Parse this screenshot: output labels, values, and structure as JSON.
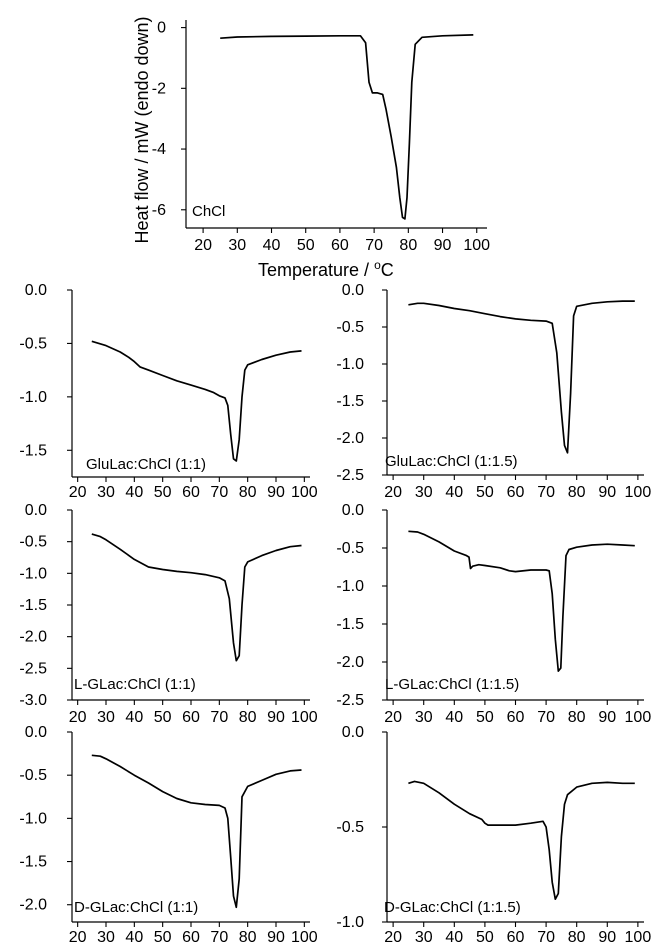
{
  "figure": {
    "ylabel": "Heat flow / mW (endo down)",
    "xlabel_prefix": "Temperature / ",
    "xlabel_sup": "o",
    "xlabel_suffix": "C"
  },
  "chart_data": [
    {
      "type": "line",
      "label": "ChCl",
      "xticks": [
        20,
        30,
        40,
        50,
        60,
        70,
        80,
        90,
        100
      ],
      "xlim": [
        15,
        103
      ],
      "yticks": [
        0,
        -2,
        -4,
        -6
      ],
      "ytick_labels": [
        "0",
        "-2",
        "-4",
        "-6"
      ],
      "ylim": [
        -6.6,
        0.25
      ],
      "x": [
        25,
        30,
        40,
        50,
        60,
        66,
        67.5,
        68.5,
        69.5,
        71,
        72.5,
        73.5,
        75,
        76.5,
        77.5,
        78.3,
        79,
        79.6,
        80.3,
        81,
        82,
        84,
        90,
        99
      ],
      "y": [
        -0.35,
        -0.31,
        -0.29,
        -0.28,
        -0.27,
        -0.27,
        -0.5,
        -1.8,
        -2.15,
        -2.15,
        -2.2,
        -2.7,
        -3.6,
        -4.6,
        -5.6,
        -6.25,
        -6.3,
        -5.6,
        -3.8,
        -1.8,
        -0.55,
        -0.32,
        -0.27,
        -0.24
      ]
    },
    {
      "type": "line",
      "label": "GluLac:ChCl (1:1)",
      "xticks": [
        20,
        30,
        40,
        50,
        60,
        70,
        80,
        90,
        100
      ],
      "xlim": [
        18,
        102
      ],
      "yticks": [
        0.0,
        -0.5,
        -1.0,
        -1.5
      ],
      "ytick_labels": [
        "0.0",
        "-0.5",
        "-1.0",
        "-1.5"
      ],
      "ylim": [
        -1.75,
        0.0
      ],
      "x": [
        25,
        30,
        35,
        38,
        40,
        42,
        45,
        50,
        55,
        60,
        65,
        68,
        70,
        72,
        73,
        74,
        75,
        76,
        77,
        78,
        79,
        80,
        85,
        90,
        95,
        99
      ],
      "y": [
        -0.48,
        -0.52,
        -0.58,
        -0.63,
        -0.67,
        -0.72,
        -0.75,
        -0.8,
        -0.85,
        -0.89,
        -0.93,
        -0.96,
        -0.99,
        -1.01,
        -1.08,
        -1.35,
        -1.58,
        -1.6,
        -1.4,
        -1.0,
        -0.75,
        -0.7,
        -0.65,
        -0.61,
        -0.58,
        -0.57
      ]
    },
    {
      "type": "line",
      "label": "GluLac:ChCl (1:1.5)",
      "xticks": [
        20,
        30,
        40,
        50,
        60,
        70,
        80,
        90,
        100
      ],
      "xlim": [
        18,
        102
      ],
      "yticks": [
        0.0,
        -0.5,
        -1.0,
        -1.5,
        -2.0,
        -2.5
      ],
      "ytick_labels": [
        "0.0",
        "-0.5",
        "-1.0",
        "-1.5",
        "-2.0",
        "-2.5"
      ],
      "ylim": [
        -2.5,
        0.0
      ],
      "x": [
        25,
        28,
        30,
        35,
        40,
        45,
        50,
        55,
        60,
        65,
        70,
        72,
        73.5,
        75,
        76,
        77,
        78,
        79,
        80,
        85,
        90,
        95,
        99
      ],
      "y": [
        -0.2,
        -0.18,
        -0.18,
        -0.21,
        -0.25,
        -0.28,
        -0.32,
        -0.36,
        -0.39,
        -0.41,
        -0.42,
        -0.45,
        -0.85,
        -1.65,
        -2.1,
        -2.2,
        -1.4,
        -0.35,
        -0.22,
        -0.18,
        -0.16,
        -0.15,
        -0.15
      ]
    },
    {
      "type": "line",
      "label": "L-GLac:ChCl (1:1)",
      "xticks": [
        20,
        30,
        40,
        50,
        60,
        70,
        80,
        90,
        100
      ],
      "xlim": [
        18,
        102
      ],
      "yticks": [
        0.0,
        -0.5,
        -1.0,
        -1.5,
        -2.0,
        -2.5,
        -3.0
      ],
      "ytick_labels": [
        "0.0",
        "-0.5",
        "-1.0",
        "-1.5",
        "-2.0",
        "-2.5",
        "-3.0"
      ],
      "ylim": [
        -3.0,
        0.0
      ],
      "x": [
        25,
        28,
        30,
        35,
        40,
        45,
        50,
        55,
        60,
        65,
        70,
        72,
        73.5,
        75,
        76,
        77,
        78,
        79,
        80,
        85,
        90,
        95,
        99
      ],
      "y": [
        -0.38,
        -0.42,
        -0.47,
        -0.62,
        -0.78,
        -0.9,
        -0.94,
        -0.97,
        -0.99,
        -1.02,
        -1.07,
        -1.12,
        -1.4,
        -2.1,
        -2.38,
        -2.3,
        -1.5,
        -0.9,
        -0.82,
        -0.72,
        -0.64,
        -0.58,
        -0.56
      ]
    },
    {
      "type": "line",
      "label": "L-GLac:ChCl (1:1.5)",
      "xticks": [
        20,
        30,
        40,
        50,
        60,
        70,
        80,
        90,
        100
      ],
      "xlim": [
        18,
        102
      ],
      "yticks": [
        0.0,
        -0.5,
        -1.0,
        -1.5,
        -2.0,
        -2.5
      ],
      "ytick_labels": [
        "0.0",
        "-0.5",
        "-1.0",
        "-1.5",
        "-2.0",
        "-2.5"
      ],
      "ylim": [
        -2.5,
        0.0
      ],
      "x": [
        25,
        28,
        30,
        35,
        40,
        44,
        44.8,
        45.3,
        46,
        48,
        50,
        55,
        58,
        60,
        65,
        70,
        71,
        72,
        73,
        74,
        74.8,
        75.5,
        76.5,
        77.5,
        80,
        85,
        90,
        95,
        99
      ],
      "y": [
        -0.28,
        -0.29,
        -0.32,
        -0.42,
        -0.54,
        -0.6,
        -0.62,
        -0.77,
        -0.74,
        -0.72,
        -0.73,
        -0.76,
        -0.8,
        -0.81,
        -0.79,
        -0.79,
        -0.8,
        -1.1,
        -1.7,
        -2.12,
        -2.08,
        -1.4,
        -0.6,
        -0.52,
        -0.49,
        -0.46,
        -0.45,
        -0.46,
        -0.47
      ]
    },
    {
      "type": "line",
      "label": "D-GLac:ChCl (1:1)",
      "xticks": [
        20,
        30,
        40,
        50,
        60,
        70,
        80,
        90,
        100
      ],
      "xlim": [
        18,
        102
      ],
      "yticks": [
        0.0,
        -0.5,
        -1.0,
        -1.5,
        -2.0
      ],
      "ytick_labels": [
        "0.0",
        "-0.5",
        "-1.0",
        "-1.5",
        "-2.0"
      ],
      "ylim": [
        -2.2,
        0.0
      ],
      "x": [
        25,
        28,
        30,
        35,
        40,
        45,
        50,
        55,
        60,
        65,
        70,
        72,
        73,
        74,
        75,
        76,
        77,
        78,
        80,
        85,
        90,
        95,
        99
      ],
      "y": [
        -0.27,
        -0.28,
        -0.31,
        -0.4,
        -0.5,
        -0.59,
        -0.69,
        -0.77,
        -0.82,
        -0.84,
        -0.85,
        -0.88,
        -1.0,
        -1.45,
        -1.9,
        -2.03,
        -1.7,
        -0.75,
        -0.63,
        -0.56,
        -0.49,
        -0.45,
        -0.44
      ]
    },
    {
      "type": "line",
      "label": "D-GLac:ChCl (1:1.5)",
      "xticks": [
        20,
        30,
        40,
        50,
        60,
        70,
        80,
        90,
        100
      ],
      "xlim": [
        18,
        102
      ],
      "yticks": [
        0.0,
        -0.5,
        -1.0
      ],
      "ytick_labels": [
        "0.0",
        "-0.5",
        "-1.0"
      ],
      "ylim": [
        -1.0,
        0.0
      ],
      "x": [
        25,
        27,
        30,
        35,
        40,
        45,
        49,
        50,
        51,
        55,
        60,
        65,
        69,
        70,
        71,
        72,
        73,
        74,
        75,
        76,
        77,
        80,
        85,
        90,
        95,
        99
      ],
      "y": [
        -0.27,
        -0.26,
        -0.27,
        -0.32,
        -0.38,
        -0.43,
        -0.46,
        -0.48,
        -0.49,
        -0.49,
        -0.49,
        -0.48,
        -0.47,
        -0.5,
        -0.62,
        -0.79,
        -0.88,
        -0.85,
        -0.55,
        -0.38,
        -0.33,
        -0.29,
        -0.27,
        -0.265,
        -0.27,
        -0.27
      ]
    }
  ]
}
